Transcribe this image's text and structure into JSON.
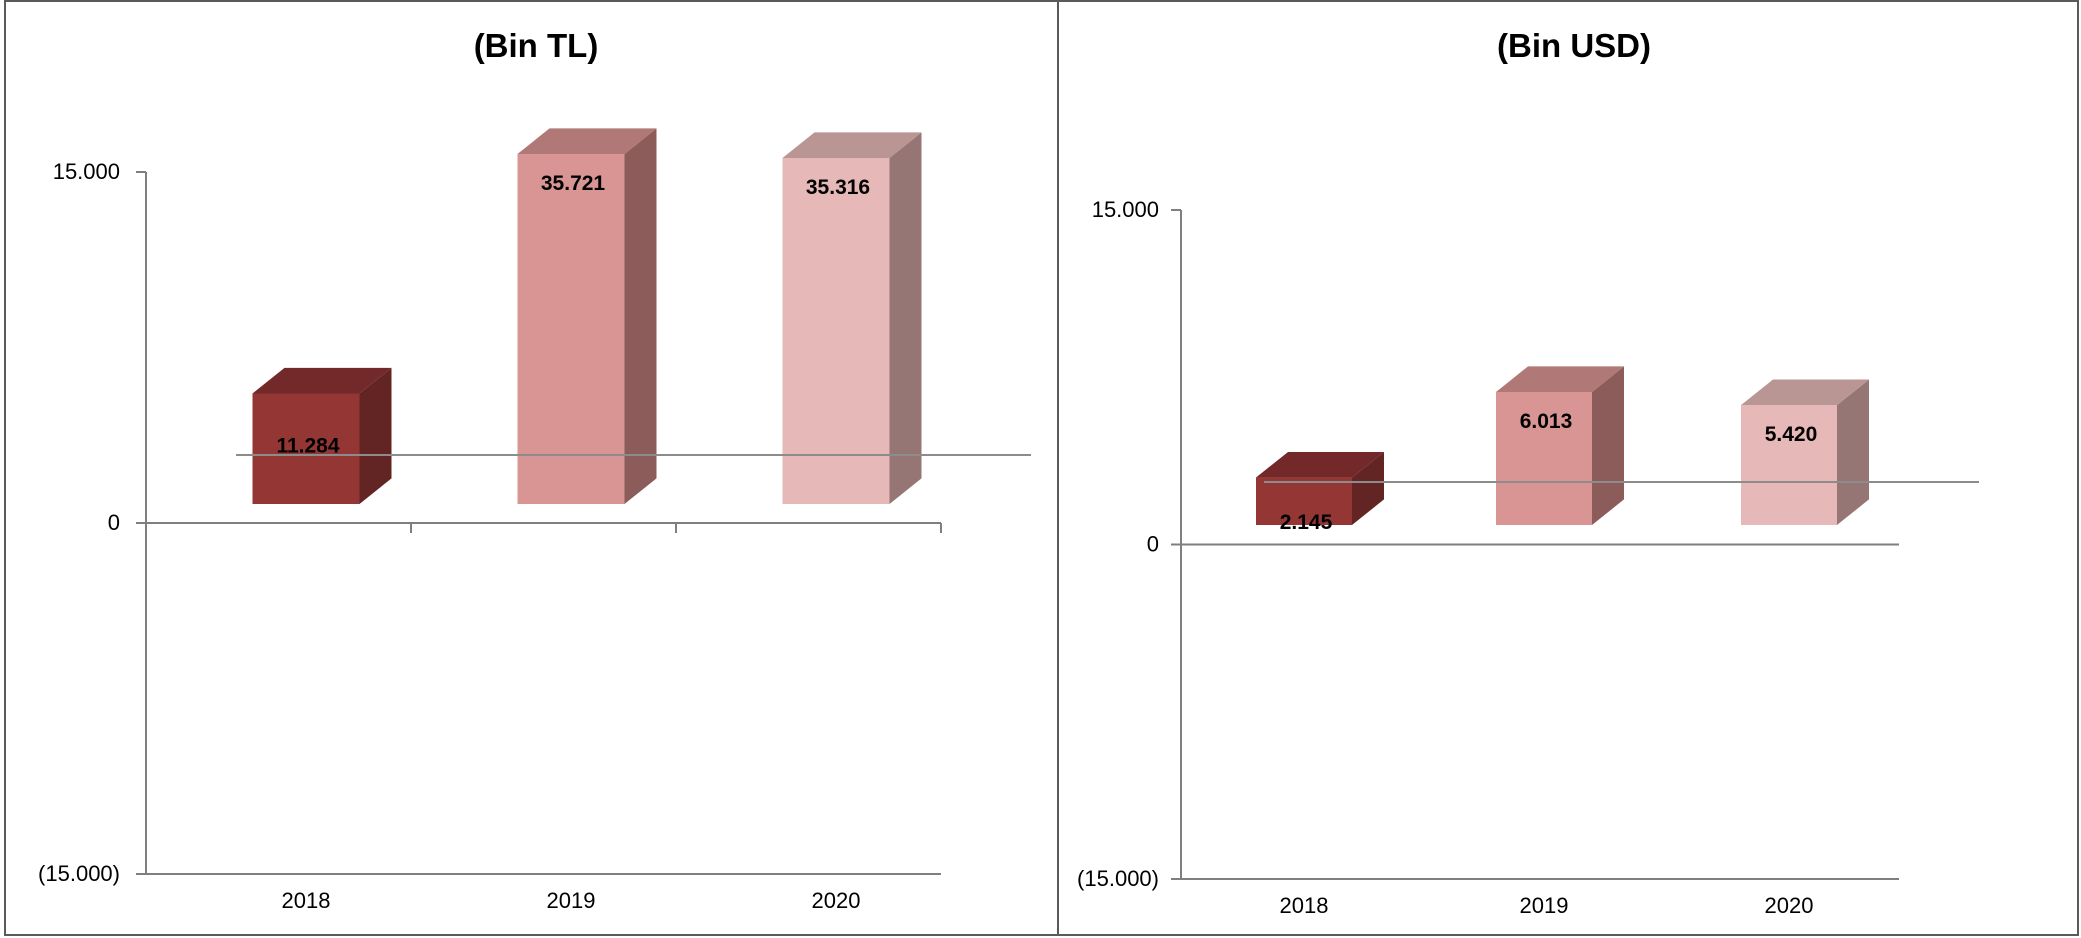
{
  "chart_data": [
    {
      "type": "bar",
      "title": "(Bin TL)",
      "categories": [
        "2018",
        "2019",
        "2020"
      ],
      "values": [
        11284,
        35721,
        35316
      ],
      "data_labels": [
        "11.284",
        "35.721",
        "35.316"
      ],
      "ylim": [
        -15000,
        15000
      ],
      "yticks": [
        {
          "value": 15000,
          "label": "15.000"
        },
        {
          "value": 0,
          "label": "0"
        },
        {
          "value": -15000,
          "label": "(15.000)"
        }
      ],
      "colors": [
        "#943634",
        "#d99594",
        "#e6b8b7"
      ],
      "side_colors": [
        "#632523",
        "#8c5c5b",
        "#957675"
      ],
      "top_colors": [
        "#73282a",
        "#b07876",
        "#b99594"
      ],
      "legend": false,
      "grid": false
    },
    {
      "type": "bar",
      "title": "(Bin USD)",
      "categories": [
        "2018",
        "2019",
        "2020"
      ],
      "values": [
        2145,
        6013,
        5420
      ],
      "data_labels": [
        "2.145",
        "6.013",
        "5.420"
      ],
      "ylim": [
        -15000,
        15000
      ],
      "yticks": [
        {
          "value": 15000,
          "label": "15.000"
        },
        {
          "value": 0,
          "label": "0"
        },
        {
          "value": -15000,
          "label": "(15.000)"
        }
      ],
      "colors": [
        "#943634",
        "#d99594",
        "#e6b8b7"
      ],
      "side_colors": [
        "#632523",
        "#8c5c5b",
        "#957675"
      ],
      "top_colors": [
        "#73282a",
        "#b07876",
        "#b99594"
      ],
      "legend": false,
      "grid": false
    }
  ]
}
